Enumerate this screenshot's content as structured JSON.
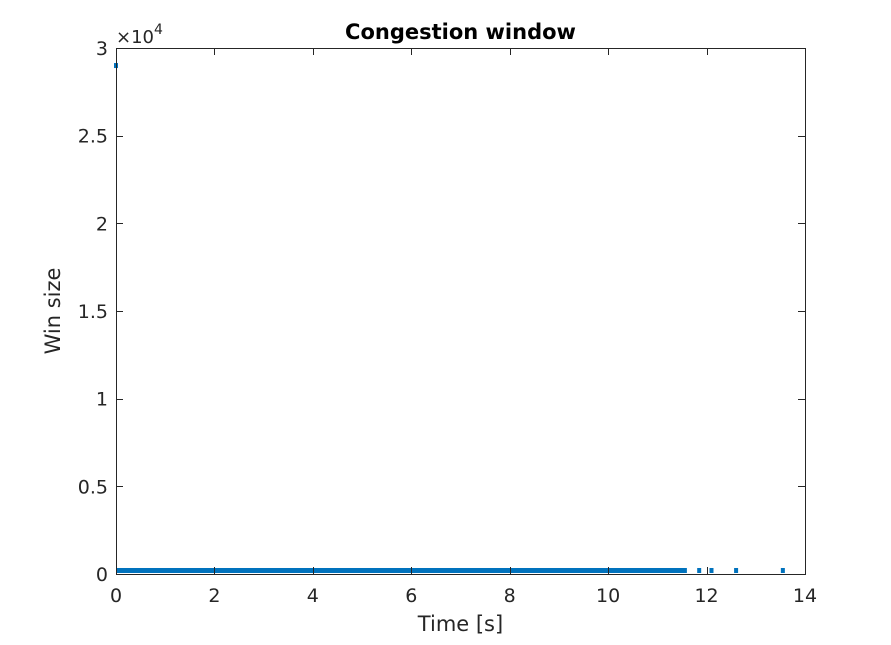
{
  "chart_data": {
    "type": "scatter",
    "title": "Congestion window",
    "xlabel": "Time [s]",
    "ylabel": "Win size",
    "xlim": [
      0,
      14
    ],
    "ylim": [
      0,
      30000
    ],
    "xticks": [
      0,
      2,
      4,
      6,
      8,
      10,
      12,
      14
    ],
    "xtick_labels": [
      "0",
      "2",
      "4",
      "6",
      "8",
      "10",
      "12",
      "14"
    ],
    "yticks": [
      0,
      5000,
      10000,
      15000,
      20000,
      25000,
      30000
    ],
    "ytick_labels": [
      "0",
      "0.5",
      "1",
      "1.5",
      "2",
      "2.5",
      "3"
    ],
    "y_exponent_base": "×10",
    "y_exponent_power": "4",
    "grid": false,
    "box": true,
    "series": [
      {
        "color": "#0072BD",
        "dense_band": {
          "x_start": 0,
          "x_end": 11.6,
          "y": 200
        },
        "x": [
          0,
          11.85,
          12.1,
          12.6,
          13.55
        ],
        "y": [
          29000,
          200,
          200,
          200,
          200
        ]
      }
    ]
  }
}
